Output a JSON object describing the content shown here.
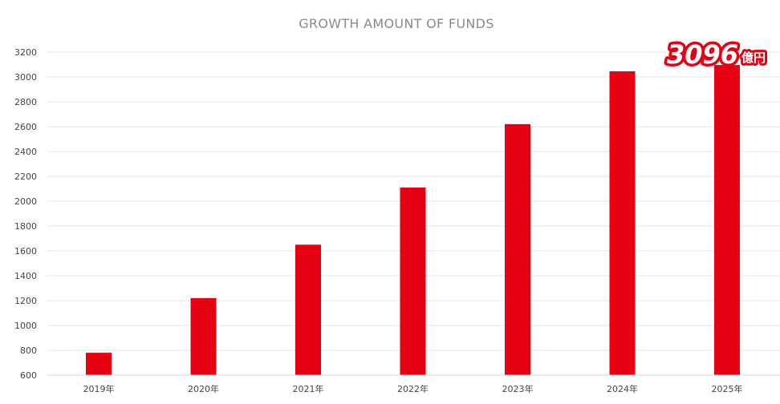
{
  "colors": {
    "bar": "#e60012",
    "grid": "#e6e6e6",
    "title": "#8a8a8a"
  },
  "chart_data": {
    "type": "bar",
    "title": "GROWTH AMOUNT OF FUNDS",
    "xlabel": "",
    "ylabel": "",
    "categories": [
      "2019年",
      "2020年",
      "2021年",
      "2022年",
      "2023年",
      "2024年",
      "2025年"
    ],
    "values": [
      780,
      1220,
      1650,
      2110,
      2620,
      3045,
      3096
    ],
    "ylim": [
      600,
      3200
    ],
    "yticks": [
      600,
      800,
      1000,
      1200,
      1400,
      1600,
      1800,
      2000,
      2200,
      2400,
      2600,
      2800,
      3000,
      3200
    ],
    "grid": true,
    "legend": "none",
    "annotation": {
      "value_text": "3096",
      "unit_text": "億円",
      "category": "2025年"
    }
  }
}
